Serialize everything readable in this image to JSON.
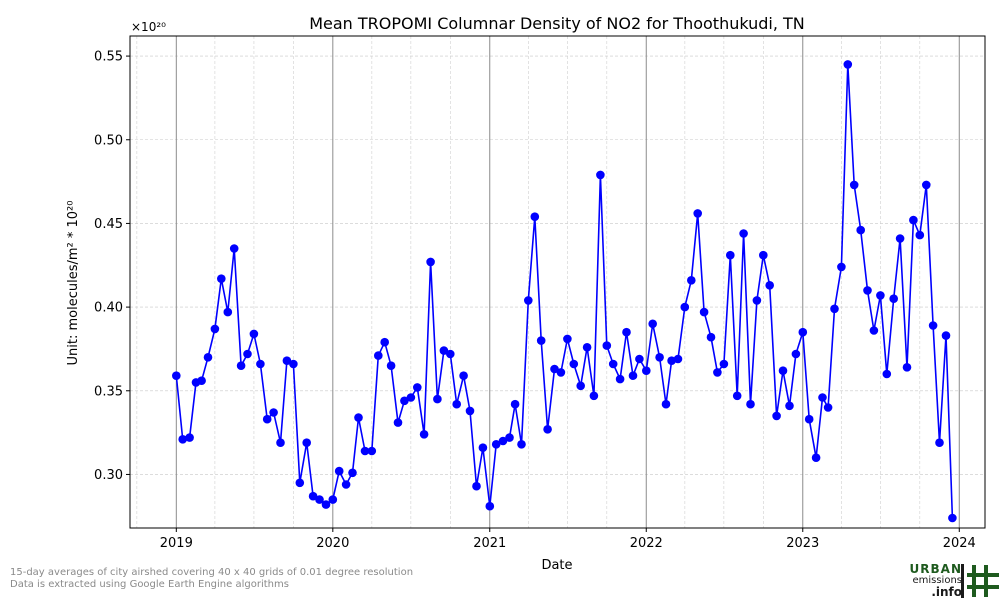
{
  "chart_data": {
    "type": "line",
    "title": "Mean TROPOMI Columnar Density of NO2 for Thoothukudi, TN",
    "xlabel": "Date",
    "ylabel": "Unit: molecules/m² * 10²⁰",
    "y_multiplier": "×10²⁰",
    "xlim": [
      "2018-09-15",
      "2024-03-01"
    ],
    "ylim": [
      0.268,
      0.562
    ],
    "x_ticks": [
      "2019-01-01",
      "2020-01-01",
      "2021-01-01",
      "2022-01-01",
      "2023-01-01",
      "2024-01-01"
    ],
    "x_tick_labels": [
      "2019",
      "2020",
      "2021",
      "2022",
      "2023",
      "2024"
    ],
    "y_ticks": [
      0.3,
      0.35,
      0.4,
      0.45,
      0.5,
      0.55
    ],
    "y_tick_labels": [
      "0.30",
      "0.35",
      "0.40",
      "0.45",
      "0.50",
      "0.55"
    ],
    "grid": true,
    "series": [
      {
        "color": "#0000ff",
        "x": [
          "2019-01-01",
          "2019-01-16",
          "2019-02-01",
          "2019-02-16",
          "2019-03-01",
          "2019-03-16",
          "2019-04-01",
          "2019-04-16",
          "2019-05-01",
          "2019-05-16",
          "2019-06-01",
          "2019-06-16",
          "2019-07-01",
          "2019-07-16",
          "2019-08-01",
          "2019-08-16",
          "2019-09-01",
          "2019-09-16",
          "2019-10-01",
          "2019-10-16",
          "2019-11-01",
          "2019-11-16",
          "2019-12-01",
          "2019-12-16",
          "2020-01-01",
          "2020-01-16",
          "2020-02-01",
          "2020-02-16",
          "2020-03-01",
          "2020-03-16",
          "2020-04-01",
          "2020-04-16",
          "2020-05-01",
          "2020-05-16",
          "2020-06-01",
          "2020-06-16",
          "2020-07-01",
          "2020-07-16",
          "2020-08-01",
          "2020-08-16",
          "2020-09-01",
          "2020-09-16",
          "2020-10-01",
          "2020-10-16",
          "2020-11-01",
          "2020-11-16",
          "2020-12-01",
          "2020-12-16",
          "2021-01-01",
          "2021-01-16",
          "2021-02-01",
          "2021-02-16",
          "2021-03-01",
          "2021-03-16",
          "2021-04-01",
          "2021-04-16",
          "2021-05-01",
          "2021-05-16",
          "2021-06-01",
          "2021-06-16",
          "2021-07-01",
          "2021-07-16",
          "2021-08-01",
          "2021-08-16",
          "2021-09-01",
          "2021-09-16",
          "2021-10-01",
          "2021-10-16",
          "2021-11-01",
          "2021-11-16",
          "2021-12-01",
          "2021-12-16",
          "2022-01-01",
          "2022-01-16",
          "2022-02-01",
          "2022-02-16",
          "2022-03-01",
          "2022-03-16",
          "2022-04-01",
          "2022-04-16",
          "2022-05-01",
          "2022-05-16",
          "2022-06-01",
          "2022-06-16",
          "2022-07-01",
          "2022-07-16",
          "2022-08-01",
          "2022-08-16",
          "2022-09-01",
          "2022-09-16",
          "2022-10-01",
          "2022-10-16",
          "2022-11-01",
          "2022-11-16",
          "2022-12-01",
          "2022-12-16",
          "2023-01-01",
          "2023-01-16",
          "2023-02-01",
          "2023-02-16",
          "2023-03-01",
          "2023-03-16",
          "2023-04-01",
          "2023-04-16",
          "2023-05-01",
          "2023-05-16",
          "2023-06-01",
          "2023-06-16",
          "2023-07-01",
          "2023-07-16",
          "2023-08-01",
          "2023-08-16",
          "2023-09-01",
          "2023-09-16",
          "2023-10-01",
          "2023-10-16",
          "2023-11-01",
          "2023-11-16",
          "2023-12-01",
          "2023-12-16"
        ],
        "y": [
          0.359,
          0.321,
          0.322,
          0.355,
          0.356,
          0.37,
          0.387,
          0.417,
          0.397,
          0.435,
          0.365,
          0.372,
          0.384,
          0.366,
          0.333,
          0.337,
          0.319,
          0.368,
          0.366,
          0.295,
          0.319,
          0.287,
          0.285,
          0.282,
          0.285,
          0.302,
          0.294,
          0.301,
          0.334,
          0.314,
          0.314,
          0.371,
          0.379,
          0.365,
          0.331,
          0.344,
          0.346,
          0.352,
          0.324,
          0.427,
          0.345,
          0.374,
          0.372,
          0.342,
          0.359,
          0.338,
          0.293,
          0.316,
          0.281,
          0.318,
          0.32,
          0.322,
          0.342,
          0.318,
          0.404,
          0.454,
          0.38,
          0.327,
          0.363,
          0.361,
          0.381,
          0.366,
          0.353,
          0.376,
          0.347,
          0.479,
          0.377,
          0.366,
          0.357,
          0.385,
          0.359,
          0.369,
          0.362,
          0.39,
          0.37,
          0.342,
          0.368,
          0.369,
          0.4,
          0.416,
          0.456,
          0.397,
          0.382,
          0.361,
          0.366,
          0.431,
          0.347,
          0.444,
          0.342,
          0.404,
          0.431,
          0.413,
          0.335,
          0.362,
          0.341,
          0.372,
          0.385,
          0.333,
          0.31,
          0.346,
          0.34,
          0.399,
          0.424,
          0.545,
          0.473,
          0.446,
          0.41,
          0.386,
          0.407,
          0.36,
          0.405,
          0.441,
          0.364,
          0.452,
          0.443,
          0.473,
          0.389,
          0.319,
          0.383,
          0.274
        ]
      }
    ]
  },
  "footnote": {
    "line1": "15-day averages of city airshed covering 40 x 40 grids of 0.01 degree resolution",
    "line2": "Data is extracted using Google Earth Engine algorithms"
  },
  "logo": {
    "word1": "URBAN",
    "word2": "emissions",
    "word3": ".info",
    "color_dark": "#1a1a1a",
    "color_green": "#1e5a1e"
  }
}
